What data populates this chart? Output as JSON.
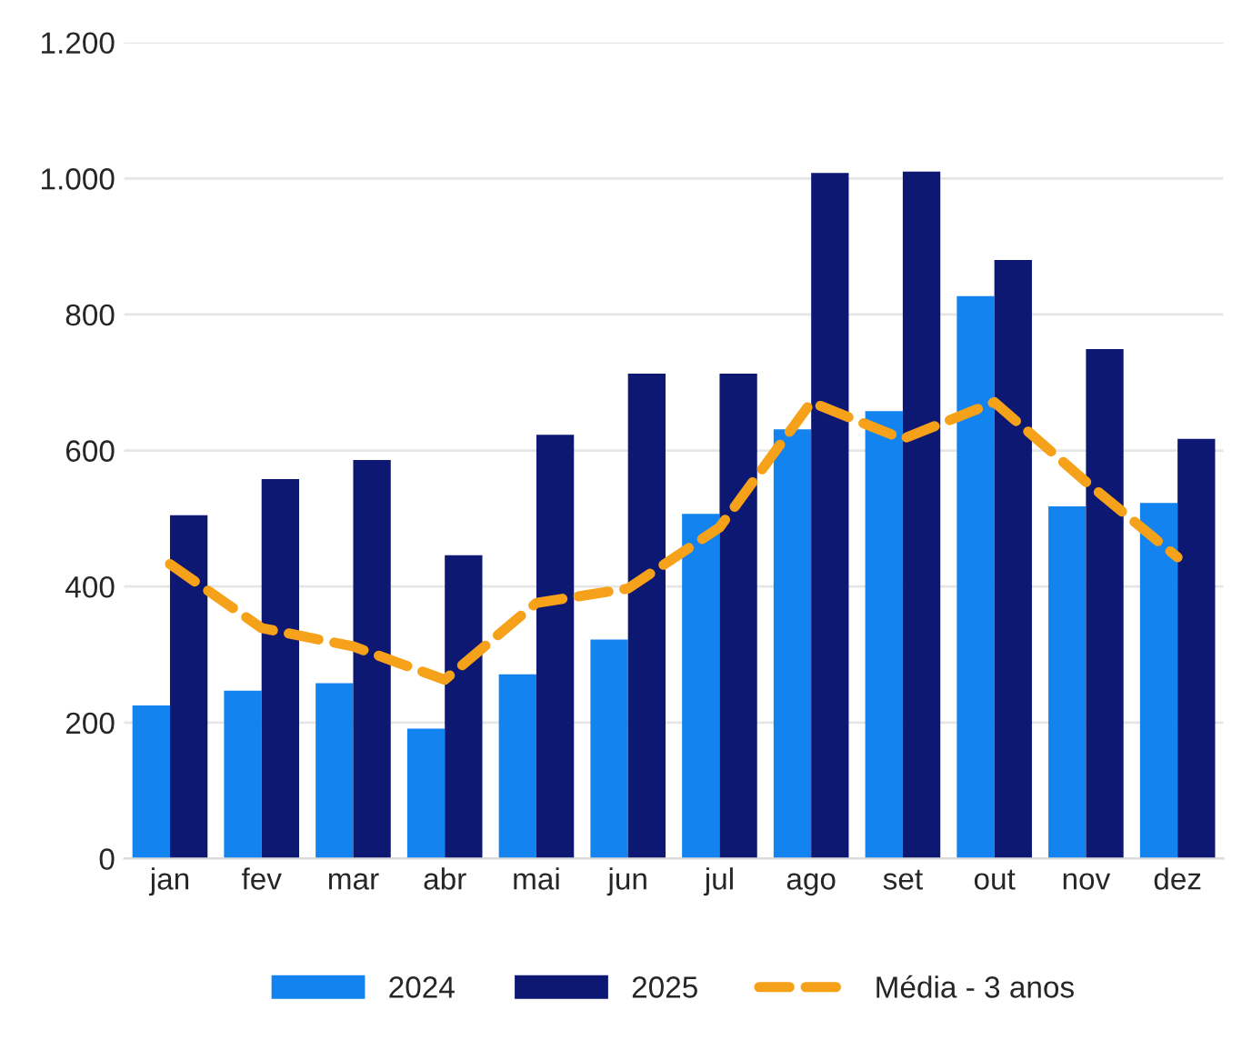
{
  "chart_data": {
    "type": "bar",
    "categories": [
      "jan",
      "fev",
      "mar",
      "abr",
      "mai",
      "jun",
      "jul",
      "ago",
      "set",
      "out",
      "nov",
      "dez"
    ],
    "series": [
      {
        "name": "2024",
        "color": "#1383f0",
        "values": [
          225,
          247,
          258,
          191,
          271,
          322,
          507,
          631,
          658,
          827,
          518,
          523
        ]
      },
      {
        "name": "2025",
        "color": "#0d1873",
        "values": [
          505,
          558,
          586,
          446,
          623,
          713,
          713,
          1008,
          1010,
          880,
          749,
          617
        ]
      },
      {
        "name": "Média - 3 anos",
        "type": "line",
        "color": "#f5a11a",
        "line_style": "dashed",
        "values": [
          433,
          339,
          312,
          263,
          376,
          397,
          487,
          671,
          617,
          671,
          554,
          443
        ]
      }
    ],
    "ylim": [
      0,
      1200
    ],
    "yticks": [
      0,
      200,
      400,
      600,
      800,
      {
        "value": 1000,
        "label": "1.000"
      },
      {
        "value": 1200,
        "label": "1.200"
      }
    ],
    "grid": "y",
    "legend": "bottom"
  }
}
